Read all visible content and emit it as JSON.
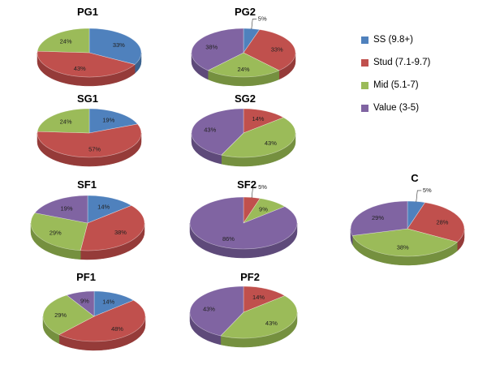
{
  "chart_data": [
    {
      "type": "pie",
      "title": "PG1",
      "categories": [
        "SS (9.8+)",
        "Stud (7.1-9.7)",
        "Mid (5.1-7)",
        "Value (3-5)"
      ],
      "values": [
        33,
        43,
        24,
        0
      ],
      "labels": [
        "33%",
        "43%",
        "24%",
        ""
      ]
    },
    {
      "type": "pie",
      "title": "PG2",
      "categories": [
        "SS (9.8+)",
        "Stud (7.1-9.7)",
        "Mid (5.1-7)",
        "Value (3-5)"
      ],
      "values": [
        5,
        33,
        24,
        38
      ],
      "labels": [
        "5%",
        "33%",
        "24%",
        "38%"
      ]
    },
    {
      "type": "pie",
      "title": "SG1",
      "categories": [
        "SS (9.8+)",
        "Stud (7.1-9.7)",
        "Mid (5.1-7)",
        "Value (3-5)"
      ],
      "values": [
        19,
        57,
        24,
        0
      ],
      "labels": [
        "19%",
        "57%",
        "24%",
        ""
      ]
    },
    {
      "type": "pie",
      "title": "SG2",
      "categories": [
        "SS (9.8+)",
        "Stud (7.1-9.7)",
        "Mid (5.1-7)",
        "Value (3-5)"
      ],
      "values": [
        0,
        14,
        43,
        43
      ],
      "labels": [
        "",
        "14%",
        "43%",
        "43%"
      ]
    },
    {
      "type": "pie",
      "title": "SF1",
      "categories": [
        "SS (9.8+)",
        "Stud (7.1-9.7)",
        "Mid (5.1-7)",
        "Value (3-5)"
      ],
      "values": [
        14,
        38,
        29,
        19
      ],
      "labels": [
        "14%",
        "38%",
        "29%",
        "19%"
      ]
    },
    {
      "type": "pie",
      "title": "SF2",
      "categories": [
        "SS (9.8+)",
        "Stud (7.1-9.7)",
        "Mid (5.1-7)",
        "Value (3-5)"
      ],
      "values": [
        0,
        5,
        9,
        86
      ],
      "labels": [
        "",
        "5%",
        "9%",
        "86%"
      ]
    },
    {
      "type": "pie",
      "title": "C",
      "categories": [
        "SS (9.8+)",
        "Stud (7.1-9.7)",
        "Mid (5.1-7)",
        "Value (3-5)"
      ],
      "values": [
        5,
        28,
        38,
        29
      ],
      "labels": [
        "5%",
        "28%",
        "38%",
        "29%"
      ]
    },
    {
      "type": "pie",
      "title": "PF1",
      "categories": [
        "SS (9.8+)",
        "Stud (7.1-9.7)",
        "Mid (5.1-7)",
        "Value (3-5)"
      ],
      "values": [
        14,
        48,
        29,
        9
      ],
      "labels": [
        "14%",
        "48%",
        "29%",
        "9%"
      ]
    },
    {
      "type": "pie",
      "title": "PF2",
      "categories": [
        "SS (9.8+)",
        "Stud (7.1-9.7)",
        "Mid (5.1-7)",
        "Value (3-5)"
      ],
      "values": [
        0,
        14,
        43,
        43
      ],
      "labels": [
        "",
        "14%",
        "43%",
        "43%"
      ]
    }
  ],
  "legend": {
    "placement": "right",
    "items": [
      {
        "label": "SS (9.8+)",
        "color": "#4f81bd"
      },
      {
        "label": "Stud (7.1-9.7)",
        "color": "#c0504d"
      },
      {
        "label": "Mid (5.1-7)",
        "color": "#9bbb59"
      },
      {
        "label": "Value (3-5)",
        "color": "#8064a2"
      }
    ]
  }
}
